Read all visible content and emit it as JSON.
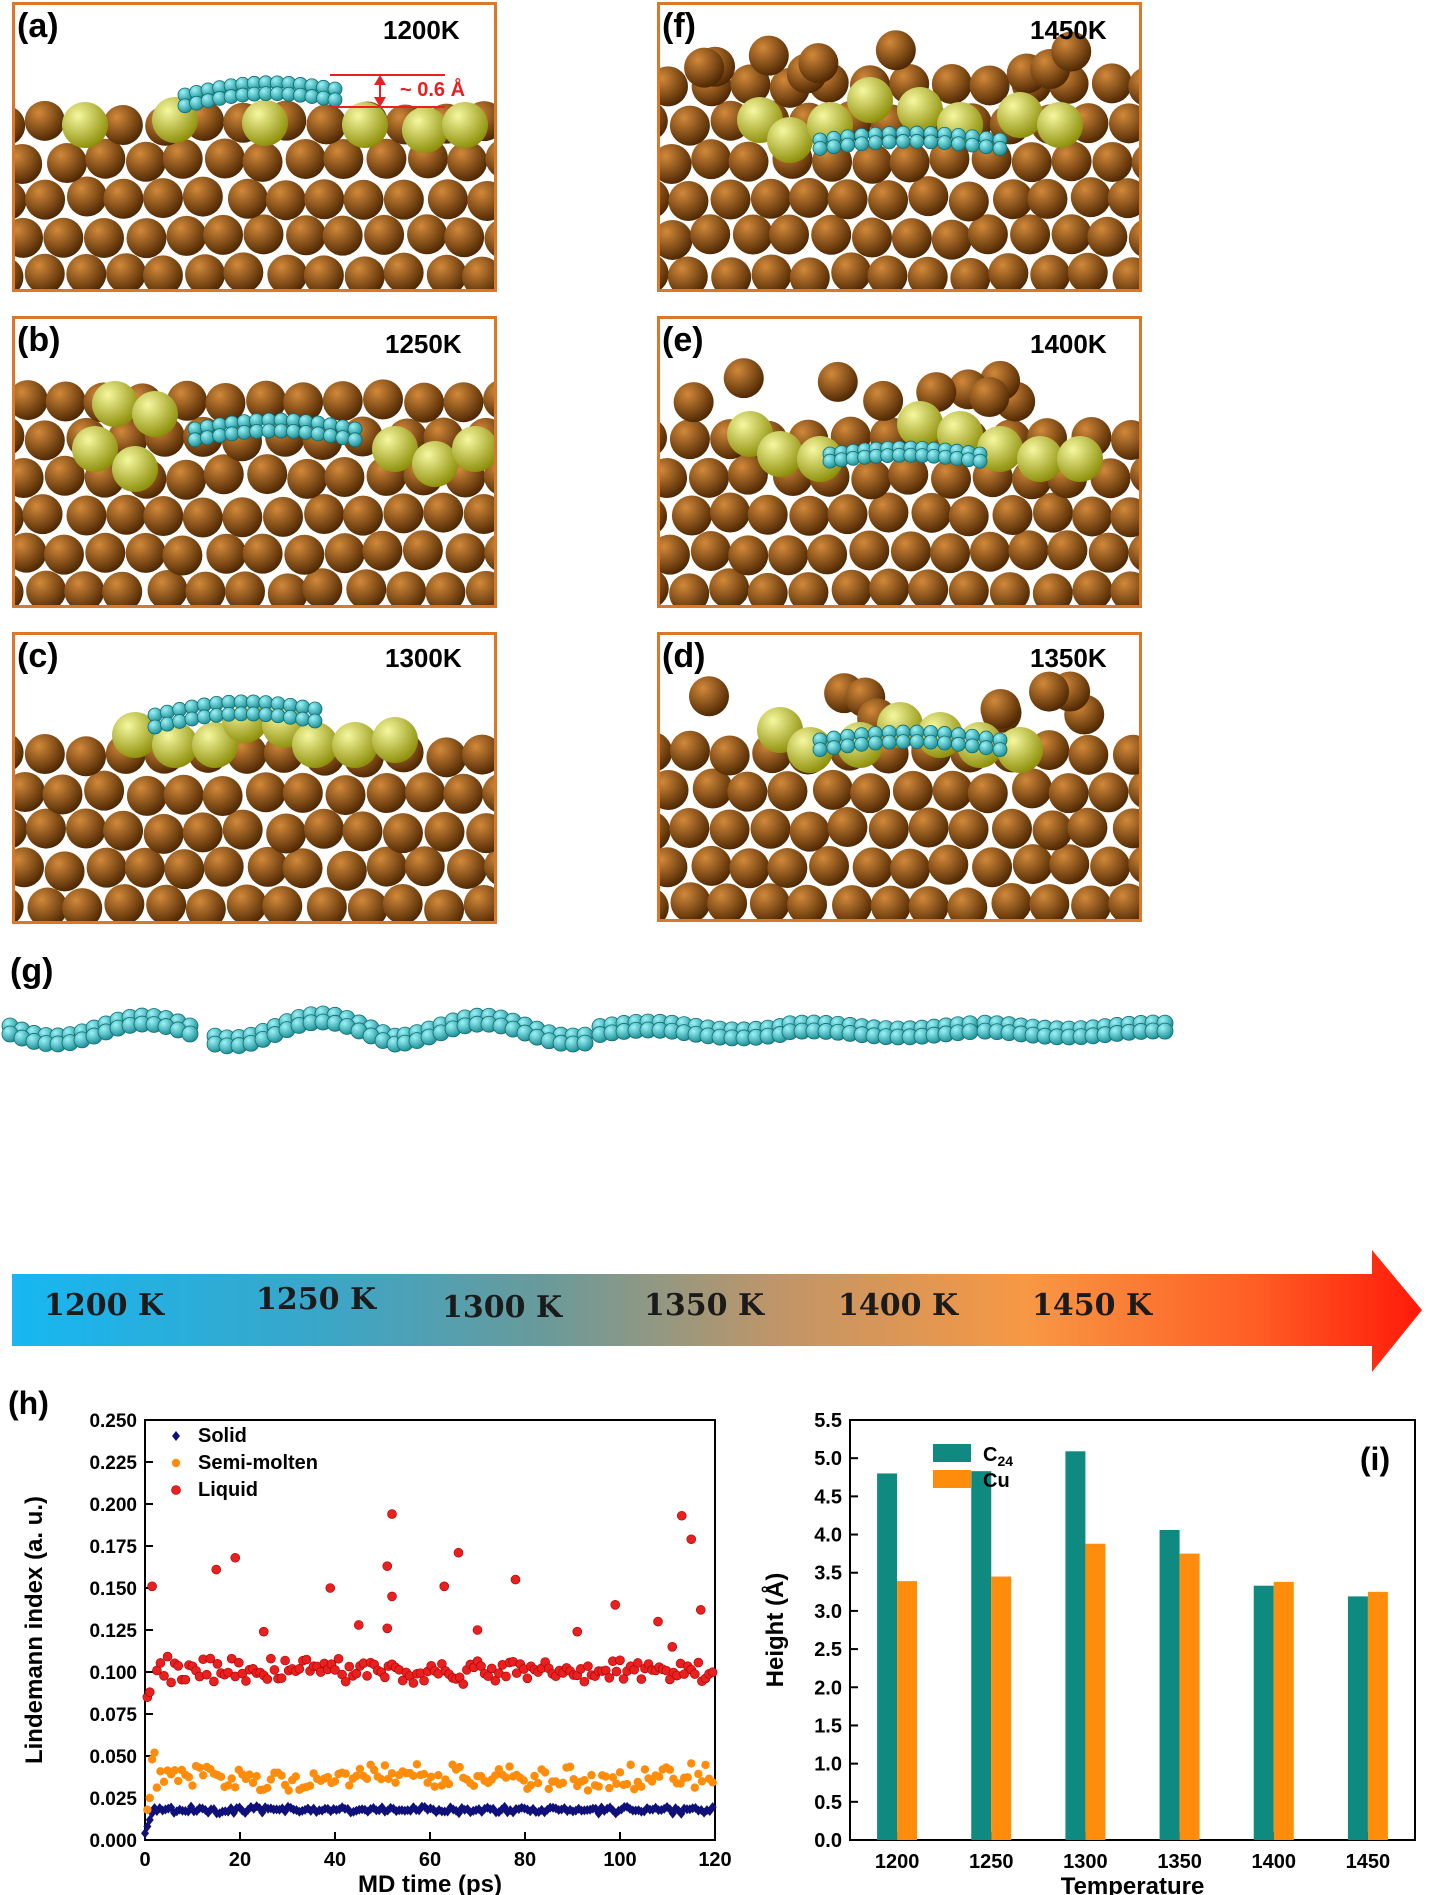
{
  "panels": [
    {
      "id": "a",
      "letter": "(a)",
      "temp": "1200K",
      "annotation": "~ 0.6 Å"
    },
    {
      "id": "b",
      "letter": "(b)",
      "temp": "1250K"
    },
    {
      "id": "c",
      "letter": "(c)",
      "temp": "1300K"
    },
    {
      "id": "f",
      "letter": "(f)",
      "temp": "1450K"
    },
    {
      "id": "e",
      "letter": "(e)",
      "temp": "1400K"
    },
    {
      "id": "d",
      "letter": "(d)",
      "temp": "1350K"
    }
  ],
  "colors": {
    "frame": "#d9782a",
    "copper": "#8a4a07",
    "surface_atom": "#c7cc12",
    "carbon": "#2bbfc7",
    "arrow_start": "#16b7f2",
    "arrow_end": "#ff1a0a",
    "solid": "#10107a",
    "semi": "#ff8c0a",
    "liquid": "#e82020",
    "c24": "#0f8a80",
    "cu": "#ff8c0a"
  },
  "panel_g": {
    "letter": "(g)",
    "labels": [
      "1200 K",
      "1250 K",
      "1300 K",
      "1350 K",
      "1400 K",
      "1450 K"
    ]
  },
  "chart_data": [
    {
      "id": "h",
      "type": "scatter",
      "panel_letter": "(h)",
      "xlabel": "MD time (ps)",
      "ylabel": "Lindemann  index (a. u.)",
      "xlim": [
        0,
        120
      ],
      "ylim": [
        0,
        0.25
      ],
      "xticks": [
        "0",
        "20",
        "40",
        "60",
        "80",
        "100",
        "120"
      ],
      "yticks": [
        "0.000",
        "0.025",
        "0.050",
        "0.075",
        "0.100",
        "0.125",
        "0.150",
        "0.175",
        "0.200",
        "0.225",
        "0.250"
      ],
      "series": [
        {
          "name": "Solid",
          "marker": "diamond",
          "level": 0.018,
          "spread": 0.0025,
          "start": [
            [
              0,
              0.004
            ],
            [
              0.5,
              0.008
            ],
            [
              1,
              0.012
            ],
            [
              1.5,
              0.016
            ],
            [
              2,
              0.019
            ]
          ]
        },
        {
          "name": "Semi-molten",
          "marker": "circle",
          "level": 0.037,
          "spread": 0.009,
          "start": [
            [
              0.5,
              0.018
            ],
            [
              1,
              0.025
            ],
            [
              1.5,
              0.048
            ],
            [
              2,
              0.052
            ]
          ]
        },
        {
          "name": "Liquid",
          "marker": "sphere",
          "level": 0.101,
          "spread": 0.009,
          "start": [
            [
              0.5,
              0.085
            ],
            [
              1,
              0.088
            ],
            [
              1.5,
              0.151
            ]
          ],
          "outliers": [
            [
              15,
              0.161
            ],
            [
              19,
              0.168
            ],
            [
              39,
              0.15
            ],
            [
              52,
              0.194
            ],
            [
              51,
              0.163
            ],
            [
              52,
              0.145
            ],
            [
              63,
              0.151
            ],
            [
              66,
              0.171
            ],
            [
              51,
              0.126
            ],
            [
              78,
              0.155
            ],
            [
              99,
              0.14
            ],
            [
              113,
              0.193
            ],
            [
              115,
              0.179
            ],
            [
              117,
              0.137
            ],
            [
              111,
              0.115
            ],
            [
              108,
              0.13
            ],
            [
              91,
              0.124
            ],
            [
              70,
              0.125
            ],
            [
              25,
              0.124
            ],
            [
              45,
              0.128
            ]
          ]
        }
      ]
    },
    {
      "id": "i",
      "type": "bar",
      "panel_letter": "(i)",
      "xlabel": "Temperature",
      "ylabel": "Height (Å)",
      "ylim": [
        0,
        5.5
      ],
      "yticks": [
        "0.0",
        "0.5",
        "1.0",
        "1.5",
        "2.0",
        "2.5",
        "3.0",
        "3.5",
        "4.0",
        "4.5",
        "5.0",
        "5.5"
      ],
      "categories": [
        "1200",
        "1250",
        "1300",
        "1350",
        "1400",
        "1450"
      ],
      "series": [
        {
          "name": "C",
          "name_sub": "24",
          "values": [
            4.8,
            4.83,
            5.09,
            4.06,
            3.33,
            3.19
          ]
        },
        {
          "name": "Cu",
          "values": [
            3.39,
            3.45,
            3.88,
            3.75,
            3.38,
            3.25
          ]
        }
      ]
    }
  ]
}
